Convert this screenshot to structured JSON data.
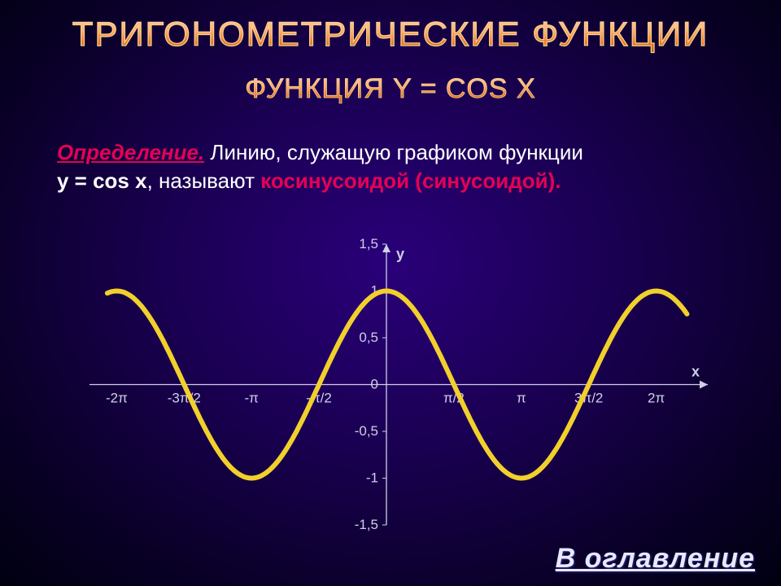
{
  "title": "ТРИГОНОМЕТРИЧЕСКИЕ ФУНКЦИИ",
  "subtitle": "ФУНКЦИЯ Y = COS X",
  "definition": {
    "lead": "Определение.",
    "text1": " Линию, служащую графиком функции ",
    "formula": "y = cos x",
    "text2": ", называют ",
    "keyword": "косинусоидой (синусоидой).",
    "tail": ""
  },
  "chart": {
    "type": "line",
    "background_color": "transparent",
    "curve_color": "#f2d02c",
    "axis_color": "#cfcfe8",
    "x": {
      "min": -7.2,
      "max": 7.2,
      "ticks_values": [
        -6.2832,
        -4.7124,
        -3.1416,
        -1.5708,
        1.5708,
        3.1416,
        4.7124,
        6.2832
      ],
      "ticks_labels": [
        "-2π",
        "-3π/2",
        "-π",
        "-π/2",
        "π/2",
        "π",
        "3π/2",
        "2π"
      ],
      "label": "x"
    },
    "y": {
      "min": -1.5,
      "max": 1.5,
      "ticks_values": [
        -1.5,
        -1,
        -0.5,
        0,
        0.5,
        1,
        1.5
      ],
      "ticks_labels": [
        "-1,5",
        "-1",
        "-0,5",
        "0",
        "0,5",
        "1",
        "1,5"
      ],
      "label": "y"
    },
    "series": {
      "name": "cos(x)",
      "amplitude": 1,
      "period": 6.2832,
      "phase": 0,
      "samples_from": -6.5,
      "samples_to": 7.0,
      "samples_step": 0.05,
      "line_width": 6
    }
  },
  "toc_link": "В оглавление"
}
